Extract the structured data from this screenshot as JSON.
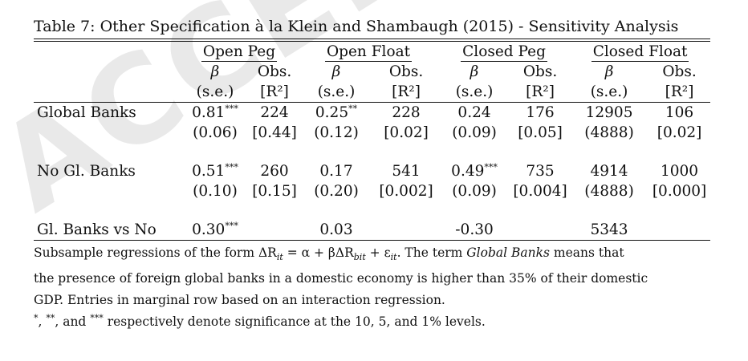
{
  "caption": "Table 7: Other Specification à la Klein and Shambaugh (2015) - Sensitivity Analysis",
  "watermark": "ACCEPTED",
  "groups": [
    "Open Peg",
    "Open Float",
    "Closed Peg",
    "Closed Float"
  ],
  "subheaders": {
    "beta": "β",
    "obs": "Obs.",
    "se": "(s.e.)",
    "r2": "[R²]"
  },
  "rows": {
    "global": {
      "label": "Global Banks",
      "values": [
        "0.81",
        "224",
        "0.25",
        "228",
        "0.24",
        "176",
        "12905",
        "106"
      ],
      "stars": [
        "***",
        "",
        "**",
        "",
        "",
        "",
        "",
        ""
      ],
      "se": [
        "(0.06)",
        "[0.44]",
        "(0.12)",
        "[0.02]",
        "(0.09)",
        "[0.05]",
        "(4888)",
        "[0.02]"
      ]
    },
    "noglobal": {
      "label": "No Gl. Banks",
      "values": [
        "0.51",
        "260",
        "0.17",
        "541",
        "0.49",
        "735",
        "4914",
        "1000"
      ],
      "stars": [
        "***",
        "",
        "",
        "",
        "***",
        "",
        "",
        ""
      ],
      "se": [
        "(0.10)",
        "[0.15]",
        "(0.20)",
        "[0.002]",
        "(0.09)",
        "[0.004]",
        "(4888)",
        "[0.000]"
      ]
    },
    "diff": {
      "label": "Gl. Banks vs No",
      "values": [
        "0.30",
        "",
        "0.03",
        "",
        "-0.30",
        "",
        "5343",
        ""
      ],
      "stars": [
        "***",
        "",
        "",
        "",
        "",
        "",
        "",
        ""
      ]
    }
  },
  "notes": {
    "line1_a": "Subsample regressions of the form ΔR",
    "line1_b": " = α + βΔR",
    "line1_c": " + ε",
    "line1_d": ". The term ",
    "line1_term": "Global Banks",
    "line1_e": " means that",
    "sub_it": "it",
    "sub_bit": "bit",
    "line2": "the presence of foreign global banks in a domestic economy is higher than 35% of their domestic",
    "line3": "GDP. Entries in marginal row based on an interaction regression.",
    "stars_1": "*",
    "stars_2": "**",
    "stars_3": "***",
    "line4_a": ", ",
    "line4_b": ", and ",
    "line4_c": " respectively denote significance at the 10, 5, and 1% levels."
  }
}
